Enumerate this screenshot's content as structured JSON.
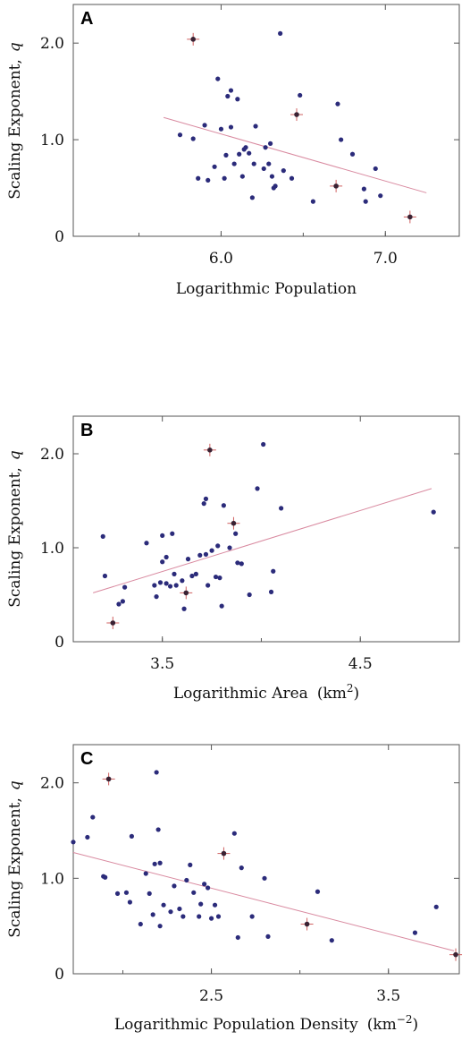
{
  "chart_data": [
    {
      "type": "scatter",
      "panel": "A",
      "xlabel": "Logarithmic  Population",
      "ylabel": "Scaling  Exponent,",
      "ylabel_symbol": "q",
      "xlim": [
        5.1,
        7.45
      ],
      "ylim": [
        0,
        2.4
      ],
      "xticks": [
        6.0,
        7.0
      ],
      "xtick_labels": [
        "6.0",
        "7.0"
      ],
      "yticks": [
        0,
        1.0,
        2.0
      ],
      "ytick_labels": [
        "0",
        "1.0",
        "2.0"
      ],
      "fit_line": [
        [
          5.65,
          1.23
        ],
        [
          7.25,
          0.45
        ]
      ],
      "points": [
        [
          5.75,
          1.05
        ],
        [
          5.83,
          1.01
        ],
        [
          5.86,
          0.6
        ],
        [
          5.9,
          1.15
        ],
        [
          5.92,
          0.58
        ],
        [
          5.96,
          0.72
        ],
        [
          5.98,
          1.63
        ],
        [
          6.0,
          1.11
        ],
        [
          6.02,
          0.6
        ],
        [
          6.03,
          0.84
        ],
        [
          6.04,
          1.45
        ],
        [
          6.06,
          1.51
        ],
        [
          6.06,
          1.13
        ],
        [
          6.08,
          0.75
        ],
        [
          6.1,
          1.42
        ],
        [
          6.11,
          0.85
        ],
        [
          6.13,
          0.62
        ],
        [
          6.14,
          0.9
        ],
        [
          6.15,
          0.92
        ],
        [
          6.17,
          0.86
        ],
        [
          6.19,
          0.4
        ],
        [
          6.2,
          0.75
        ],
        [
          6.21,
          1.14
        ],
        [
          6.26,
          0.7
        ],
        [
          6.27,
          0.92
        ],
        [
          6.29,
          0.75
        ],
        [
          6.3,
          0.96
        ],
        [
          6.31,
          0.62
        ],
        [
          6.32,
          0.5
        ],
        [
          6.33,
          0.52
        ],
        [
          6.36,
          2.1
        ],
        [
          6.38,
          0.68
        ],
        [
          6.43,
          0.6
        ],
        [
          6.48,
          1.46
        ],
        [
          6.56,
          0.36
        ],
        [
          6.71,
          1.37
        ],
        [
          6.73,
          1.0
        ],
        [
          6.8,
          0.85
        ],
        [
          6.87,
          0.49
        ],
        [
          6.88,
          0.36
        ],
        [
          6.94,
          0.7
        ],
        [
          6.97,
          0.42
        ]
      ],
      "highlighted_points": [
        [
          5.83,
          2.04
        ],
        [
          6.46,
          1.26
        ],
        [
          6.7,
          0.52
        ],
        [
          7.15,
          0.2
        ]
      ]
    },
    {
      "type": "scatter",
      "panel": "B",
      "xlabel": "Logarithmic  Area",
      "xlabel_unit": "(km",
      "xlabel_unit_sup": "2",
      "xlabel_unit_close": ")",
      "ylabel": "Scaling  Exponent,",
      "ylabel_symbol": "q",
      "xlim": [
        3.05,
        5.0
      ],
      "ylim": [
        0,
        2.4
      ],
      "xticks": [
        3.5,
        4.5
      ],
      "xtick_labels": [
        "3.5",
        "4.5"
      ],
      "yticks": [
        0,
        1.0,
        2.0
      ],
      "ytick_labels": [
        "0",
        "1.0",
        "2.0"
      ],
      "fit_line": [
        [
          3.15,
          0.52
        ],
        [
          4.86,
          1.63
        ]
      ],
      "points": [
        [
          3.2,
          1.12
        ],
        [
          3.21,
          0.7
        ],
        [
          3.28,
          0.4
        ],
        [
          3.3,
          0.43
        ],
        [
          3.31,
          0.58
        ],
        [
          3.42,
          1.05
        ],
        [
          3.46,
          0.6
        ],
        [
          3.47,
          0.48
        ],
        [
          3.49,
          0.63
        ],
        [
          3.5,
          0.85
        ],
        [
          3.5,
          1.13
        ],
        [
          3.52,
          0.62
        ],
        [
          3.52,
          0.9
        ],
        [
          3.54,
          0.59
        ],
        [
          3.55,
          1.15
        ],
        [
          3.56,
          0.72
        ],
        [
          3.57,
          0.6
        ],
        [
          3.6,
          0.65
        ],
        [
          3.61,
          0.35
        ],
        [
          3.63,
          0.88
        ],
        [
          3.65,
          0.7
        ],
        [
          3.67,
          0.72
        ],
        [
          3.69,
          0.92
        ],
        [
          3.71,
          1.47
        ],
        [
          3.72,
          0.93
        ],
        [
          3.72,
          1.52
        ],
        [
          3.73,
          0.6
        ],
        [
          3.75,
          0.97
        ],
        [
          3.77,
          0.69
        ],
        [
          3.78,
          1.02
        ],
        [
          3.79,
          0.68
        ],
        [
          3.8,
          0.38
        ],
        [
          3.81,
          1.45
        ],
        [
          3.84,
          1.0
        ],
        [
          3.87,
          1.15
        ],
        [
          3.88,
          0.84
        ],
        [
          3.9,
          0.83
        ],
        [
          3.94,
          0.5
        ],
        [
          3.98,
          1.63
        ],
        [
          4.01,
          2.1
        ],
        [
          4.05,
          0.53
        ],
        [
          4.06,
          0.75
        ],
        [
          4.1,
          1.42
        ],
        [
          4.87,
          1.38
        ]
      ],
      "highlighted_points": [
        [
          3.25,
          0.2
        ],
        [
          3.62,
          0.52
        ],
        [
          3.74,
          2.04
        ],
        [
          3.86,
          1.26
        ]
      ]
    },
    {
      "type": "scatter",
      "panel": "C",
      "xlabel": "Logarithmic  Population  Density",
      "xlabel_unit": "(km",
      "xlabel_unit_sup": "−2",
      "xlabel_unit_close": ")",
      "ylabel": "Scaling  Exponent,",
      "ylabel_symbol": "q",
      "xlim": [
        1.72,
        3.9
      ],
      "ylim": [
        0,
        2.4
      ],
      "xticks": [
        2.5,
        3.5
      ],
      "xtick_labels": [
        "2.5",
        "3.5"
      ],
      "yticks": [
        0,
        1.0,
        2.0
      ],
      "ytick_labels": [
        "0",
        "1.0",
        "2.0"
      ],
      "fit_line": [
        [
          1.72,
          1.27
        ],
        [
          3.87,
          0.24
        ]
      ],
      "points": [
        [
          1.72,
          1.38
        ],
        [
          1.8,
          1.43
        ],
        [
          1.83,
          1.64
        ],
        [
          1.89,
          1.02
        ],
        [
          1.9,
          1.01
        ],
        [
          1.97,
          0.84
        ],
        [
          2.02,
          0.85
        ],
        [
          2.04,
          0.75
        ],
        [
          2.05,
          1.44
        ],
        [
          2.1,
          0.52
        ],
        [
          2.13,
          1.05
        ],
        [
          2.15,
          0.84
        ],
        [
          2.17,
          0.62
        ],
        [
          2.18,
          1.15
        ],
        [
          2.19,
          2.11
        ],
        [
          2.2,
          1.51
        ],
        [
          2.21,
          0.5
        ],
        [
          2.21,
          1.16
        ],
        [
          2.23,
          0.72
        ],
        [
          2.27,
          0.65
        ],
        [
          2.29,
          0.92
        ],
        [
          2.32,
          0.68
        ],
        [
          2.34,
          0.6
        ],
        [
          2.36,
          0.98
        ],
        [
          2.38,
          1.14
        ],
        [
          2.4,
          0.85
        ],
        [
          2.43,
          0.6
        ],
        [
          2.44,
          0.73
        ],
        [
          2.46,
          0.94
        ],
        [
          2.48,
          0.9
        ],
        [
          2.5,
          0.58
        ],
        [
          2.52,
          0.72
        ],
        [
          2.54,
          0.6
        ],
        [
          2.63,
          1.47
        ],
        [
          2.65,
          0.38
        ],
        [
          2.67,
          1.11
        ],
        [
          2.73,
          0.6
        ],
        [
          2.8,
          1.0
        ],
        [
          2.82,
          0.39
        ],
        [
          3.1,
          0.86
        ],
        [
          3.18,
          0.35
        ],
        [
          3.65,
          0.43
        ],
        [
          3.77,
          0.7
        ]
      ],
      "highlighted_points": [
        [
          1.92,
          2.04
        ],
        [
          2.57,
          1.26
        ],
        [
          3.04,
          0.52
        ],
        [
          3.88,
          0.2
        ]
      ]
    }
  ]
}
